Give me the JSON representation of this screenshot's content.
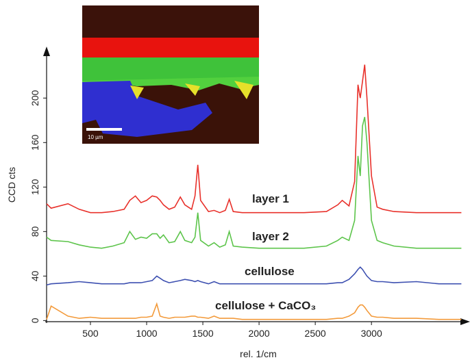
{
  "chart_data": {
    "type": "line",
    "x_label": "rel. 1/cm",
    "y_label": "CCD cts",
    "inset_label": "10 µm",
    "x": [
      110,
      150,
      300,
      400,
      500,
      600,
      700,
      800,
      850,
      900,
      950,
      1000,
      1050,
      1090,
      1120,
      1150,
      1200,
      1250,
      1300,
      1340,
      1400,
      1430,
      1455,
      1480,
      1550,
      1600,
      1650,
      1700,
      1735,
      1770,
      1850,
      2000,
      2200,
      2400,
      2600,
      2700,
      2740,
      2800,
      2850,
      2880,
      2900,
      2920,
      2940,
      2960,
      3000,
      3050,
      3100,
      3200,
      3400,
      3600,
      3800
    ],
    "series": [
      {
        "name": "layer 1",
        "color": "#e8302a",
        "values": [
          105,
          101,
          105,
          100,
          97,
          97,
          98,
          100,
          108,
          112,
          106,
          108,
          112,
          111,
          108,
          104,
          100,
          102,
          111,
          104,
          100,
          112,
          140,
          108,
          98,
          99,
          97,
          99,
          109,
          98,
          97,
          97,
          97,
          97,
          98,
          104,
          108,
          103,
          125,
          212,
          200,
          215,
          230,
          200,
          130,
          102,
          100,
          98,
          97,
          97,
          97
        ]
      },
      {
        "name": "layer 2",
        "color": "#5cc44a",
        "values": [
          75,
          72,
          71,
          68,
          66,
          65,
          67,
          70,
          80,
          73,
          75,
          74,
          78,
          78,
          74,
          77,
          70,
          71,
          80,
          72,
          70,
          75,
          97,
          72,
          67,
          70,
          66,
          68,
          80,
          67,
          66,
          65,
          65,
          65,
          67,
          72,
          75,
          72,
          90,
          148,
          130,
          175,
          183,
          160,
          90,
          72,
          70,
          67,
          65,
          65,
          65
        ]
      },
      {
        "name": "cellulose",
        "color": "#3c4fb0",
        "values": [
          32,
          33,
          34,
          35,
          34,
          33,
          33,
          33,
          34,
          34,
          34,
          35,
          36,
          40,
          38,
          36,
          34,
          35,
          36,
          37,
          36,
          35,
          36,
          35,
          33,
          35,
          33,
          33,
          33,
          33,
          33,
          33,
          33,
          33,
          33,
          34,
          34,
          37,
          42,
          46,
          48,
          46,
          43,
          40,
          36,
          35,
          35,
          34,
          35,
          33,
          33
        ]
      },
      {
        "name": "cellulose + CaCO₃",
        "color": "#f39a3a",
        "values": [
          1,
          13,
          4,
          2,
          3,
          2,
          2,
          2,
          2,
          2,
          3,
          3,
          4,
          15,
          4,
          3,
          2,
          3,
          3,
          3,
          4,
          4,
          3,
          3,
          2,
          4,
          2,
          2,
          2,
          2,
          1,
          1,
          1,
          1,
          1,
          2,
          2,
          4,
          7,
          12,
          14,
          14,
          12,
          9,
          4,
          3,
          3,
          2,
          2,
          1,
          1
        ]
      }
    ],
    "xlim": [
      110,
      3840
    ],
    "ylim": [
      -1,
      242
    ],
    "xticks": [
      500,
      1000,
      1500,
      2000,
      2500,
      3000
    ],
    "yticks": [
      0,
      40,
      80,
      120,
      160,
      200
    ]
  }
}
